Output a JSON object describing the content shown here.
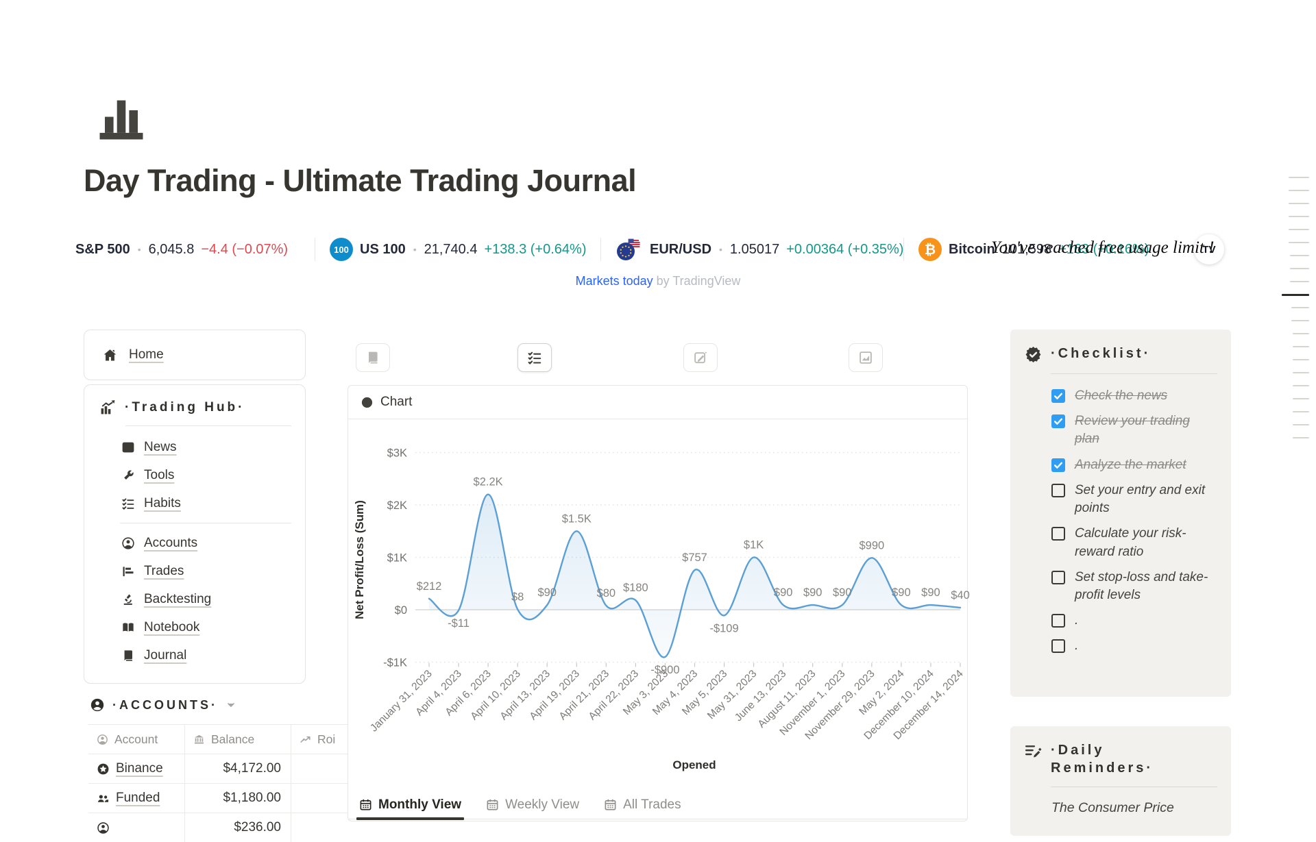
{
  "page": {
    "title": "Day Trading - Ultimate Trading Journal"
  },
  "ticker": {
    "attribution_link": "Markets today",
    "attribution_rest": "by TradingView",
    "overlay_message": "You've reached free usage limit !",
    "tv_badge": "TV",
    "colors": {
      "up": "#12998a",
      "down": "#e0484e",
      "link": "#2962ff"
    },
    "items": [
      {
        "symbol": "S&P 500",
        "price": "6,045.8",
        "change": "−4.4 (−0.07%)",
        "direction": "down",
        "badge": "none",
        "dot": true
      },
      {
        "symbol": "US 100",
        "price": "21,740.4",
        "change": "+138.3 (+0.64%)",
        "direction": "up",
        "badge": "us100",
        "badge_label": "100",
        "dot": true
      },
      {
        "symbol": "EUR/USD",
        "price": "1.05017",
        "change": "+0.00364 (+0.35%)",
        "direction": "up",
        "badge": "eurusd",
        "dot": true
      },
      {
        "symbol": "Bitcoin",
        "price": "101,598",
        "change": "+163 (+0.16%)",
        "direction": "up",
        "badge": "btc",
        "badge_glyph": "₿",
        "dot": false
      }
    ]
  },
  "sidebar": {
    "home_label": "Home",
    "hub_title": "·Trading Hub·",
    "hub_items": [
      {
        "label": "News",
        "icon": "news"
      },
      {
        "label": "Tools",
        "icon": "wrench"
      },
      {
        "label": "Habits",
        "icon": "habits",
        "divider_after": true
      },
      {
        "label": "Accounts",
        "icon": "person-circle"
      },
      {
        "label": "Trades",
        "icon": "trades"
      },
      {
        "label": "Backtesting",
        "icon": "microscope"
      },
      {
        "label": "Notebook",
        "icon": "book-open"
      },
      {
        "label": "Journal",
        "icon": "journal"
      }
    ],
    "accounts_title": "·ACCOUNTS·",
    "accounts_columns": [
      {
        "label": "Account",
        "icon": "person-circle"
      },
      {
        "label": "Balance",
        "icon": "bank"
      },
      {
        "label": "Roi",
        "icon": "trend"
      }
    ],
    "accounts_rows": [
      {
        "name": "Binance",
        "icon": "star-circle",
        "balance": "$4,172.00",
        "roi": ""
      },
      {
        "name": "Funded",
        "icon": "people",
        "balance": "$1,180.00",
        "roi": ""
      },
      {
        "name": "",
        "icon": "person-circle",
        "balance": "$236.00",
        "roi": ""
      }
    ]
  },
  "main": {
    "chart_title": "Chart",
    "tabs": [
      {
        "label": "Monthly View",
        "active": true
      },
      {
        "label": "Weekly View",
        "active": false
      },
      {
        "label": "All Trades",
        "active": false
      }
    ]
  },
  "chart_data": {
    "type": "line",
    "title": "Chart",
    "xlabel": "Opened",
    "ylabel": "Net Profit/Loss (Sum)",
    "x": [
      "January 31, 2023",
      "April 4, 2023",
      "April 6, 2023",
      "April 10, 2023",
      "April 13, 2023",
      "April 19, 2023",
      "April 21, 2023",
      "April 22, 2023",
      "May 3, 2023",
      "May 4, 2023",
      "May 5, 2023",
      "May 31, 2023",
      "June 13, 2023",
      "August 11, 2023",
      "November 1, 2023",
      "November 29, 2023",
      "May 2, 2024",
      "December 10, 2024",
      "December 14, 2024"
    ],
    "values": [
      212,
      -11,
      2200,
      8,
      90,
      1500,
      80,
      180,
      -900,
      757,
      -109,
      1000,
      90,
      90,
      90,
      990,
      90,
      90,
      40
    ],
    "point_labels": [
      "$212",
      "-$11",
      "$2.2K",
      "$8",
      "$90",
      "$1.5K",
      "$80",
      "$180",
      "-$900",
      "$757",
      "-$109",
      "$1K",
      "$90",
      "$90",
      "$90",
      "$990",
      "$90",
      "$90",
      "$40"
    ],
    "yticks": [
      {
        "value": 3000,
        "label": "$3K"
      },
      {
        "value": 2000,
        "label": "$2K"
      },
      {
        "value": 1000,
        "label": "$1K"
      },
      {
        "value": 0,
        "label": "$0"
      },
      {
        "value": -1000,
        "label": "-$1K"
      }
    ],
    "ylim": [
      -1000,
      3000
    ],
    "line_color": "#5b9fd4",
    "grid": "dotted",
    "legend": false
  },
  "checklist": {
    "title": "·Checklist·",
    "checkbox_color": "#2e9df2",
    "items": [
      {
        "text": "Check the news",
        "checked": true
      },
      {
        "text": "Review your trading plan",
        "checked": true
      },
      {
        "text": "Analyze the market",
        "checked": true
      },
      {
        "text": "Set your entry and exit points",
        "checked": false
      },
      {
        "text": "Calculate your risk-reward ratio",
        "checked": false
      },
      {
        "text": "Set stop-loss and take-profit levels",
        "checked": false
      },
      {
        "text": ".",
        "checked": false
      },
      {
        "text": ".",
        "checked": false
      }
    ]
  },
  "daily_reminders": {
    "title": "·Daily Reminders·",
    "text": "The Consumer Price"
  }
}
